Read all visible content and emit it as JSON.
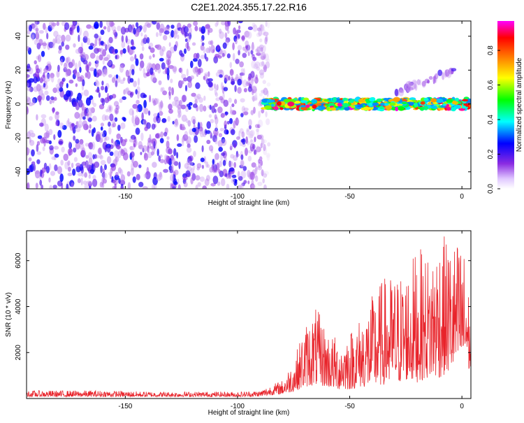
{
  "title": "C2E1.2024.355.17.22.R16",
  "chart_data": [
    {
      "type": "heatmap",
      "xlabel": "Height of straight line (km)",
      "ylabel": "Frequency (Hz)",
      "xlim": [
        -194,
        4
      ],
      "ylim": [
        -50,
        49
      ],
      "xticks": [
        -150,
        -100,
        -50,
        0
      ],
      "yticks": [
        -40,
        -20,
        0,
        20,
        40
      ],
      "grid": false,
      "colorbar": {
        "label": "Normalized spectral amplitude",
        "range": [
          0,
          0.97
        ],
        "ticks": [
          0.0,
          0.2,
          0.4,
          0.6,
          0.8
        ],
        "colormap": [
          "#ffffff",
          "#8a2be2",
          "#0000ff",
          "#00ffff",
          "#00ff00",
          "#ffff00",
          "#ff8000",
          "#ff0000",
          "#ff00ff"
        ]
      },
      "regions": [
        {
          "description": "scattered noise",
          "x_range": [
            -194,
            -86
          ],
          "y_range": [
            -50,
            49
          ],
          "amplitude": [
            0.05,
            0.25
          ]
        },
        {
          "description": "narrow band near 0 Hz",
          "x_range": [
            -88,
            4
          ],
          "y_range": [
            -3,
            3
          ],
          "amplitude": [
            0.3,
            0.97
          ]
        },
        {
          "description": "faint upper trail",
          "x_range": [
            -30,
            -2
          ],
          "y_range": [
            5,
            22
          ],
          "amplitude": [
            0.05,
            0.2
          ]
        }
      ]
    },
    {
      "type": "line",
      "xlabel": "Height of straight line (km)",
      "ylabel": "SNR (10 * v/v)",
      "xlim": [
        -194,
        4
      ],
      "ylim": [
        0,
        7300
      ],
      "xticks": [
        -150,
        -100,
        -50,
        0
      ],
      "yticks": [
        2000,
        4000,
        6000
      ],
      "grid": false,
      "color": "#e8232a",
      "series": [
        {
          "x": [
            -194,
            -180,
            -160,
            -140,
            -120,
            -100,
            -90,
            -85,
            -80,
            -75,
            -70,
            -65,
            -60,
            -55,
            -50,
            -45,
            -40,
            -35,
            -30,
            -25,
            -20,
            -15,
            -10,
            -5,
            0,
            2,
            4
          ],
          "y_low": [
            80,
            80,
            80,
            80,
            80,
            80,
            90,
            150,
            200,
            300,
            500,
            600,
            500,
            400,
            400,
            500,
            500,
            600,
            600,
            800,
            700,
            900,
            900,
            1200,
            1500,
            1500,
            1000
          ],
          "y_high": [
            350,
            350,
            350,
            300,
            300,
            300,
            350,
            600,
            800,
            1700,
            3200,
            4000,
            3000,
            2600,
            3000,
            3600,
            4500,
            5300,
            5400,
            5600,
            6600,
            6300,
            7200,
            6900,
            6900,
            6000,
            3500
          ]
        }
      ]
    }
  ]
}
